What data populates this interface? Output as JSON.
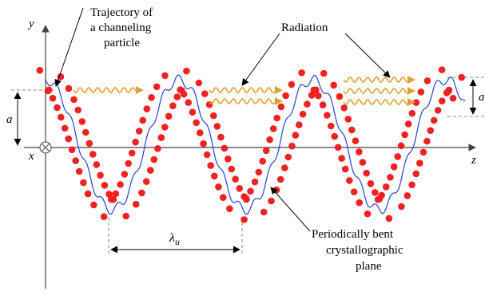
{
  "labels": {
    "y_axis": "y",
    "x_axis": "x",
    "z_axis": "z",
    "amplitude_a": "a",
    "amplitude_right": "a",
    "period": "λ",
    "period_sub": "u",
    "radiation": "Radiation",
    "trajectory": [
      "Trajectory of",
      "a channeling",
      "particle"
    ],
    "plane": [
      "Periodically  bent",
      "crystallographic",
      "plane"
    ]
  },
  "colors": {
    "atom": "#ee2222",
    "trajectory": "#2244cc",
    "radiation": "#e0a030",
    "axis": "#444444"
  }
}
